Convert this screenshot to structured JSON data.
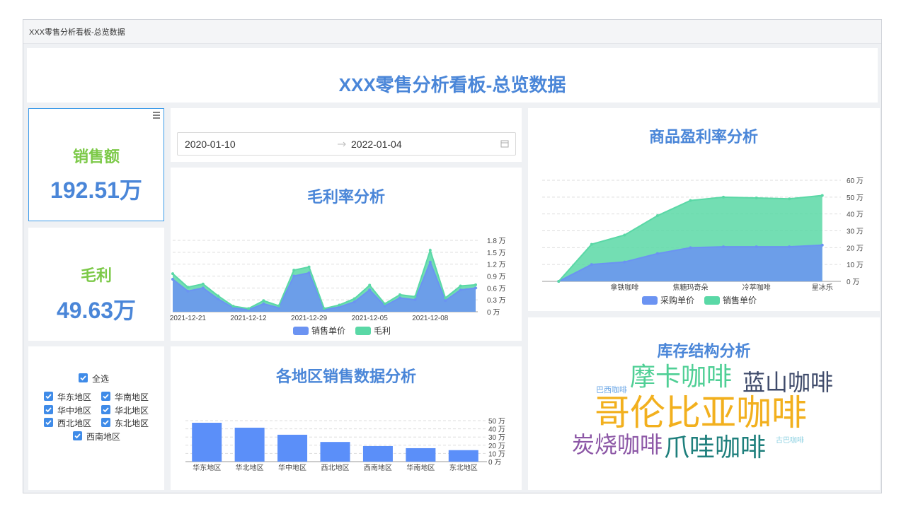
{
  "window_title": "XXX零售分析看板-总览数据",
  "header": {
    "title": "XXX零售分析看板-总览数据"
  },
  "kpis": [
    {
      "label": "销售额",
      "value": "192.51万"
    },
    {
      "label": "毛利",
      "value": "49.63万"
    }
  ],
  "date_range": {
    "start": "2020-01-10",
    "end": "2022-01-04"
  },
  "filters": {
    "all": "全选",
    "regions": [
      "华东地区",
      "华南地区",
      "华中地区",
      "华北地区",
      "西北地区",
      "东北地区",
      "西南地区"
    ]
  },
  "word_cloud": {
    "title": "库存结构分析",
    "words": [
      {
        "text": "摩卡咖啡",
        "color": "#4fcf95"
      },
      {
        "text": "蓝山咖啡",
        "color": "#3e4a6a"
      },
      {
        "text": "巴西咖啡",
        "color": "#6aa6e6"
      },
      {
        "text": "哥伦比亚咖啡",
        "color": "#f2b01e"
      },
      {
        "text": "炭烧咖啡",
        "color": "#8c57a6"
      },
      {
        "text": "爪哇咖啡",
        "color": "#1e7f7c"
      },
      {
        "text": "古巴咖啡",
        "color": "#8dd1e2"
      }
    ]
  },
  "chart_data": [
    {
      "type": "area",
      "title": "毛利率分析",
      "stacked": true,
      "grid": true,
      "categories": [
        null,
        "2021-12-21",
        null,
        null,
        null,
        "2021-12-12",
        null,
        null,
        null,
        "2021-12-29",
        null,
        null,
        null,
        "2021-12-05",
        null,
        null,
        null,
        "2021-12-08",
        null,
        null,
        null
      ],
      "series": [
        {
          "name": "销售单价",
          "color": "#6b93f2",
          "values": [
            0.82,
            0.52,
            0.6,
            0.32,
            0.1,
            0.05,
            0.2,
            0.1,
            0.9,
            0.98,
            0.05,
            0.12,
            0.25,
            0.55,
            0.15,
            0.35,
            0.3,
            1.25,
            0.28,
            0.55,
            0.6
          ]
        },
        {
          "name": "毛利",
          "color": "#5ad8a6",
          "values": [
            0.14,
            0.1,
            0.1,
            0.08,
            0.04,
            0.03,
            0.08,
            0.05,
            0.15,
            0.15,
            0.03,
            0.05,
            0.08,
            0.12,
            0.05,
            0.08,
            0.08,
            0.3,
            0.07,
            0.1,
            0.08
          ]
        }
      ],
      "ylim": [
        0,
        1.8
      ],
      "yticks": [
        {
          "value": 0,
          "label": "0 万"
        },
        {
          "value": 0.3,
          "label": "0.3 万"
        },
        {
          "value": 0.6,
          "label": "0.6 万"
        },
        {
          "value": 0.9,
          "label": "0.9 万"
        },
        {
          "value": 1.2,
          "label": "1.2 万"
        },
        {
          "value": 1.5,
          "label": "1.5 万"
        },
        {
          "value": 1.8,
          "label": "1.8 万"
        }
      ]
    },
    {
      "type": "area",
      "title": "商品盈利率分析",
      "stacked": false,
      "grid": true,
      "categories": [
        null,
        null,
        "拿铁咖啡",
        null,
        "焦糖玛奇朵",
        null,
        "冷萃咖啡",
        null,
        "星冰乐"
      ],
      "series": [
        {
          "name": "采购单价",
          "color": "#6b93f2",
          "values": [
            0,
            10,
            11.5,
            16.5,
            20,
            20.5,
            20.5,
            20.5,
            21.5
          ]
        },
        {
          "name": "销售单价",
          "color": "#5ad8a6",
          "values": [
            0,
            22,
            27.5,
            39,
            48,
            50,
            49.5,
            49,
            51
          ]
        }
      ],
      "ylim": [
        0,
        60
      ],
      "yticks": [
        {
          "value": 0,
          "label": "0 万"
        },
        {
          "value": 10,
          "label": "10 万"
        },
        {
          "value": 20,
          "label": "20 万"
        },
        {
          "value": 30,
          "label": "30 万"
        },
        {
          "value": 40,
          "label": "40 万"
        },
        {
          "value": 50,
          "label": "50 万"
        },
        {
          "value": 60,
          "label": "60 万"
        }
      ]
    },
    {
      "type": "bar",
      "title": "各地区销售数据分析",
      "grid": true,
      "color": "#5b8ff9",
      "categories": [
        "华东地区",
        "华北地区",
        "华中地区",
        "西北地区",
        "西南地区",
        "华南地区",
        "东北地区"
      ],
      "values": [
        47.4,
        41.4,
        32.8,
        24,
        19,
        16.4,
        14
      ],
      "ylim": [
        0,
        50
      ],
      "yticks": [
        {
          "value": 0,
          "label": "0 万"
        },
        {
          "value": 10,
          "label": "10 万"
        },
        {
          "value": 20,
          "label": "20 万"
        },
        {
          "value": 30,
          "label": "30 万"
        },
        {
          "value": 40,
          "label": "40 万"
        },
        {
          "value": 50,
          "label": "50 万"
        }
      ]
    }
  ]
}
